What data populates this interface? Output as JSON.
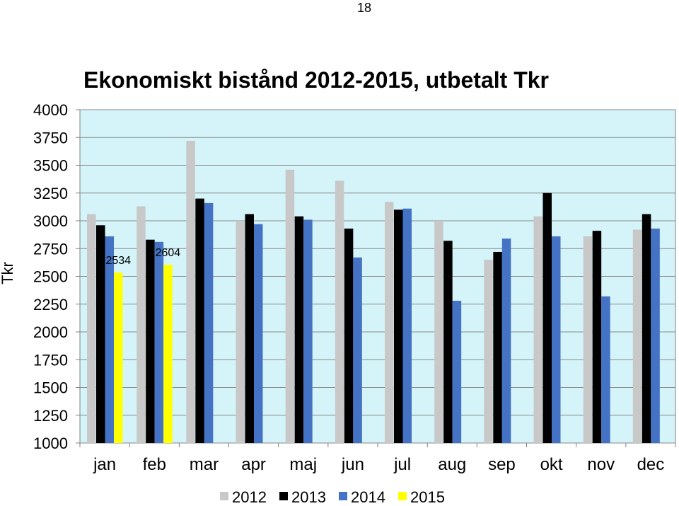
{
  "page": {
    "number": "18"
  },
  "chart_data": {
    "type": "bar",
    "title": "Ekonomiskt bistånd 2012-2015, utbetalt Tkr",
    "ylabel": "Tkr",
    "xlabel": "",
    "ylim": [
      1000,
      4000
    ],
    "yticks": [
      "1000",
      "1250",
      "1500",
      "1750",
      "2000",
      "2250",
      "2500",
      "2750",
      "3000",
      "3250",
      "3500",
      "3750",
      "4000"
    ],
    "ytick_values": [
      1000,
      1250,
      1500,
      1750,
      2000,
      2250,
      2500,
      2750,
      3000,
      3250,
      3500,
      3750,
      4000
    ],
    "grid": true,
    "legend_position": "bottom",
    "plot_background": "#d4f4f9",
    "categories": [
      "jan",
      "feb",
      "mar",
      "apr",
      "maj",
      "jun",
      "jul",
      "aug",
      "sep",
      "okt",
      "nov",
      "dec"
    ],
    "series": [
      {
        "name": "2012",
        "color": "#c8c8c8",
        "values": [
          3060,
          3130,
          3720,
          3000,
          3460,
          3360,
          3170,
          3000,
          2650,
          3040,
          2860,
          2920
        ]
      },
      {
        "name": "2013",
        "color": "#000000",
        "values": [
          2960,
          2830,
          3200,
          3060,
          3040,
          2930,
          3100,
          2820,
          2720,
          3250,
          2910,
          3060
        ]
      },
      {
        "name": "2014",
        "color": "#4472c4",
        "values": [
          2860,
          2810,
          3160,
          2970,
          3010,
          2670,
          3110,
          2280,
          2840,
          2860,
          2320,
          2930
        ]
      },
      {
        "name": "2015",
        "color": "#ffff00",
        "values": [
          2534,
          2604,
          null,
          null,
          null,
          null,
          null,
          null,
          null,
          null,
          null,
          null
        ]
      }
    ],
    "data_labels": [
      {
        "series": "2015",
        "category": "jan",
        "text": "2534"
      },
      {
        "series": "2015",
        "category": "feb",
        "text": "2604"
      }
    ]
  }
}
